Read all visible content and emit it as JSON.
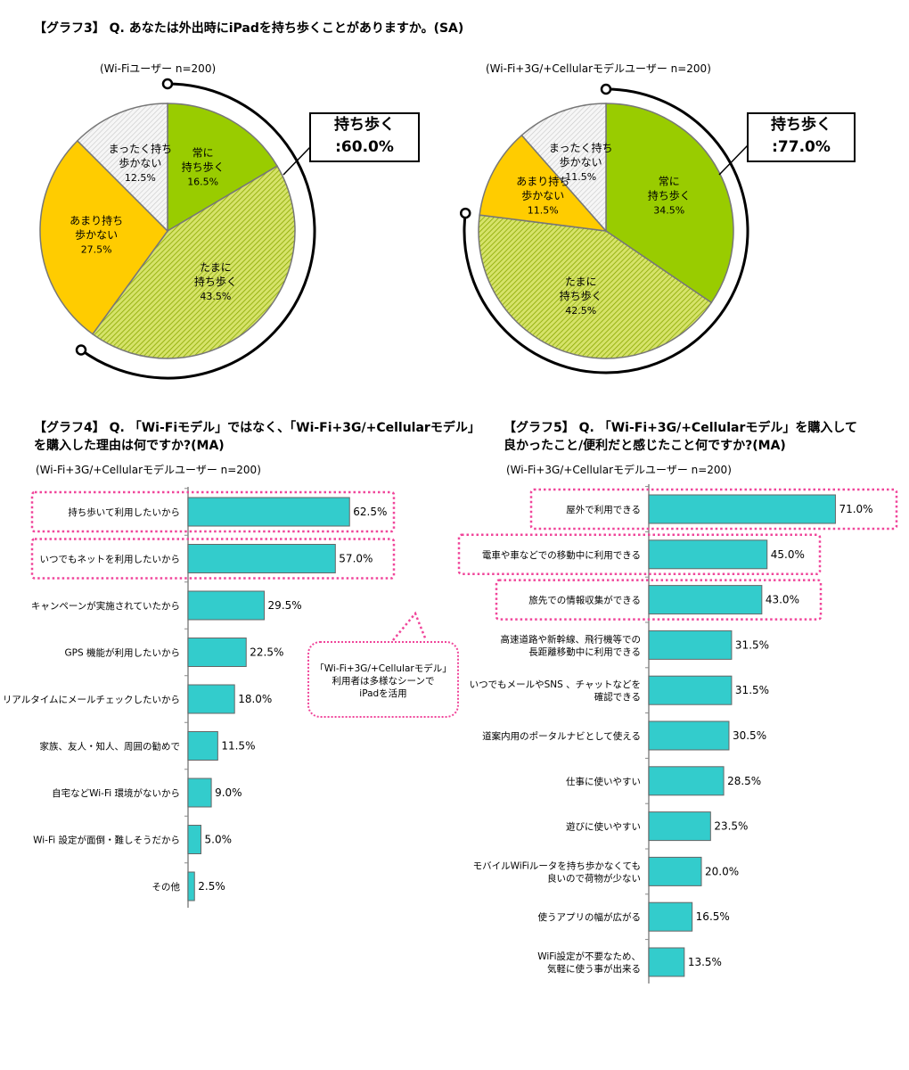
{
  "graph3": {
    "title": "【グラフ3】 Q. あなたは外出時にiPadを持ち歩くことがありますか。(SA)",
    "pies": [
      {
        "subtitle": "(Wi-Fiユーザー n=200)",
        "callout_line1": "持ち歩く",
        "callout_line2": ":60.0%",
        "slices": [
          {
            "label": "常に|持ち歩く",
            "pct": "16.5%",
            "value": 16.5,
            "color": "#99cc00",
            "pattern": "solid"
          },
          {
            "label": "たまに|持ち歩く",
            "pct": "43.5%",
            "value": 43.5,
            "color": "#ccdd44",
            "pattern": "hatch-green"
          },
          {
            "label": "あまり持ち|歩かない",
            "pct": "27.5%",
            "value": 27.5,
            "color": "#ffcc00",
            "pattern": "solid"
          },
          {
            "label": "まったく持ち|歩かない",
            "pct": "12.5%",
            "value": 12.5,
            "color": "#e0e0e0",
            "pattern": "hatch-gray"
          }
        ]
      },
      {
        "subtitle": "(Wi-Fi+3G/+Cellularモデルユーザー n=200)",
        "callout_line1": "持ち歩く",
        "callout_line2": ":77.0%",
        "slices": [
          {
            "label": "常に|持ち歩く",
            "pct": "34.5%",
            "value": 34.5,
            "color": "#99cc00",
            "pattern": "solid"
          },
          {
            "label": "たまに|持ち歩く",
            "pct": "42.5%",
            "value": 42.5,
            "color": "#ccdd44",
            "pattern": "hatch-green"
          },
          {
            "label": "あまり持ち|歩かない",
            "pct": "11.5%",
            "value": 11.5,
            "color": "#ffcc00",
            "pattern": "solid"
          },
          {
            "label": "まったく持ち|歩かない",
            "pct": "11.5%",
            "value": 11.5,
            "color": "#e0e0e0",
            "pattern": "hatch-gray"
          }
        ]
      }
    ]
  },
  "graph4": {
    "title_line1": "【グラフ4】 Q. 「Wi-Fiモデル」ではなく、「Wi-Fi+3G/+Cellularモデル」",
    "title_line2": "を購入した理由は何ですか?(MA)",
    "subtitle": "(Wi-Fi+3G/+Cellularモデルユーザー n=200)",
    "note_line1": "「Wi-Fi+3G/+Cellularモデル」",
    "note_line2": "利用者は多様なシーンで",
    "note_line3": "iPadを活用"
  },
  "graph5": {
    "title_line1": "【グラフ5】 Q. 「Wi-Fi+3G/+Cellularモデル」を購入して",
    "title_line2": "良かったこと/便利だと感じたこと何ですか?(MA)",
    "subtitle": "(Wi-Fi+3G/+Cellularモデルユーザー n=200)"
  },
  "chart_data": [
    {
      "type": "pie",
      "title": "(Wi-Fiユーザー n=200)",
      "categories": [
        "常に持ち歩く",
        "たまに持ち歩く",
        "あまり持ち歩かない",
        "まったく持ち歩かない"
      ],
      "values": [
        16.5,
        43.5,
        27.5,
        12.5
      ]
    },
    {
      "type": "pie",
      "title": "(Wi-Fi+3G/+Cellularモデルユーザー n=200)",
      "categories": [
        "常に持ち歩く",
        "たまに持ち歩く",
        "あまり持ち歩かない",
        "まったく持ち歩かない"
      ],
      "values": [
        34.5,
        42.5,
        11.5,
        11.5
      ]
    },
    {
      "type": "bar",
      "orientation": "horizontal",
      "xlim": [
        0,
        100
      ],
      "bar_color": "#33cccc",
      "items": [
        {
          "label": "持ち歩いて利用したいから",
          "value": 62.5,
          "text": "62.5%",
          "highlight": true
        },
        {
          "label": "いつでもネットを利用したいから",
          "value": 57.0,
          "text": "57.0%",
          "highlight": true
        },
        {
          "label": "キャンペーンが実施されていたから",
          "value": 29.5,
          "text": "29.5%",
          "highlight": false
        },
        {
          "label": "GPS 機能が利用したいから",
          "value": 22.5,
          "text": "22.5%",
          "highlight": false
        },
        {
          "label": "リアルタイムにメールチェックしたいから",
          "value": 18.0,
          "text": "18.0%",
          "highlight": false
        },
        {
          "label": "家族、友人・知人、周囲の勧めで",
          "value": 11.5,
          "text": "11.5%",
          "highlight": false
        },
        {
          "label": "自宅などWi-Fi 環境がないから",
          "value": 9.0,
          "text": "9.0%",
          "highlight": false
        },
        {
          "label": "Wi-Fi 設定が面倒・難しそうだから",
          "value": 5.0,
          "text": "5.0%",
          "highlight": false
        },
        {
          "label": "その他",
          "value": 2.5,
          "text": "2.5%",
          "highlight": false
        }
      ]
    },
    {
      "type": "bar",
      "orientation": "horizontal",
      "xlim": [
        0,
        100
      ],
      "bar_color": "#33cccc",
      "items": [
        {
          "label": "屋外で利用できる",
          "value": 71.0,
          "text": "71.0%",
          "highlight": true
        },
        {
          "label": "電車や車などでの移動中に利用できる",
          "value": 45.0,
          "text": "45.0%",
          "highlight": true
        },
        {
          "label": "旅先での情報収集ができる",
          "value": 43.0,
          "text": "43.0%",
          "highlight": true
        },
        {
          "label": "高速道路や新幹線、飛行機等での|長距離移動中に利用できる",
          "value": 31.5,
          "text": "31.5%",
          "highlight": false
        },
        {
          "label": "いつでもメールやSNS 、チャットなどを|確認できる",
          "value": 31.5,
          "text": "31.5%",
          "highlight": false
        },
        {
          "label": "道案内用のポータルナビとして使える",
          "value": 30.5,
          "text": "30.5%",
          "highlight": false
        },
        {
          "label": "仕事に使いやすい",
          "value": 28.5,
          "text": "28.5%",
          "highlight": false
        },
        {
          "label": "遊びに使いやすい",
          "value": 23.5,
          "text": "23.5%",
          "highlight": false
        },
        {
          "label": "モバイルWiFiルータを持ち歩かなくても|良いので荷物が少ない",
          "value": 20.0,
          "text": "20.0%",
          "highlight": false
        },
        {
          "label": "使うアプリの幅が広がる",
          "value": 16.5,
          "text": "16.5%",
          "highlight": false
        },
        {
          "label": "WiFi設定が不要なため、|気軽に使う事が出来る",
          "value": 13.5,
          "text": "13.5%",
          "highlight": false
        }
      ]
    }
  ]
}
